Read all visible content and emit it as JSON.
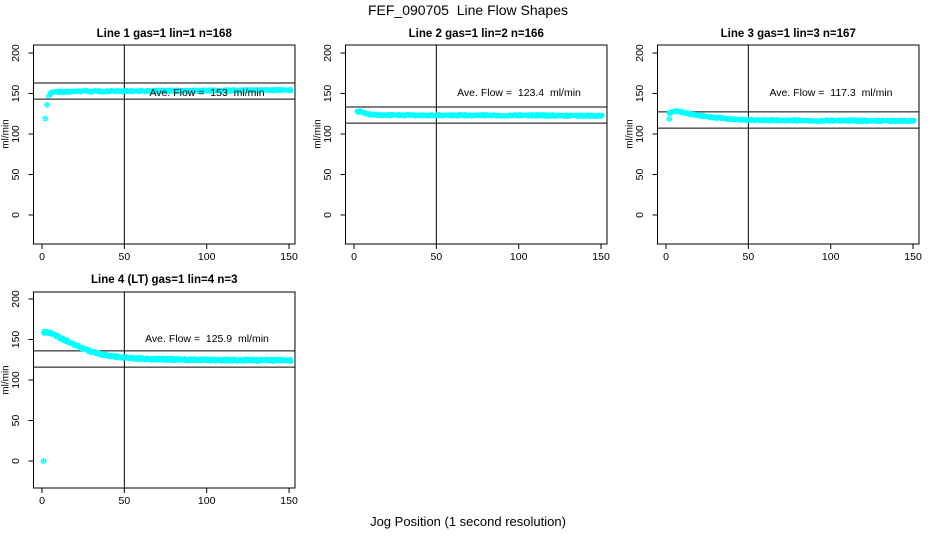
{
  "figure": {
    "main_title": "FEF_090705  Line Flow Shapes",
    "x_axis_label": "Jog Position (1 second resolution)",
    "y_axis_label": "ml/min",
    "point_color": "#00ffff",
    "line_color": "#000000",
    "background_color": "#ffffff"
  },
  "chart_data": [
    {
      "type": "scatter",
      "panel_position": "top-left",
      "title": "Line 1 gas=1 lin=1 n=168",
      "n": 168,
      "ave_flow_ml_min": 153,
      "ave_label": "Ave. Flow =  153  ml/min",
      "xlim": [
        0,
        150
      ],
      "ylim": [
        0,
        200
      ],
      "x_ticks": [
        0,
        50,
        100,
        150
      ],
      "y_ticks": [
        0,
        50,
        100,
        150,
        200
      ],
      "vline_x": 50,
      "hlines": [
        143,
        163
      ],
      "grid": false,
      "legend": false,
      "point_symbol": "open-circle-plus",
      "band_reps": 2,
      "band_jitter": 1.0,
      "isolated_points": [
        [
          2,
          119
        ],
        [
          3,
          136
        ]
      ],
      "curve_points": [
        [
          4,
          146
        ],
        [
          5,
          149.5
        ],
        [
          6,
          151
        ],
        [
          8,
          152
        ],
        [
          12,
          152.3
        ],
        [
          20,
          152.5
        ],
        [
          40,
          152.8
        ],
        [
          60,
          153
        ],
        [
          80,
          153.3
        ],
        [
          100,
          153.6
        ],
        [
          120,
          153.8
        ],
        [
          151,
          154.2
        ]
      ]
    },
    {
      "type": "scatter",
      "panel_position": "top-middle",
      "title": "Line 2 gas=1 lin=2 n=166",
      "n": 166,
      "ave_flow_ml_min": 123.4,
      "ave_label": "Ave. Flow =  123.4  ml/min",
      "xlim": [
        0,
        150
      ],
      "ylim": [
        0,
        200
      ],
      "x_ticks": [
        0,
        50,
        100,
        150
      ],
      "y_ticks": [
        0,
        50,
        100,
        150,
        200
      ],
      "vline_x": 50,
      "hlines": [
        113.4,
        133.4
      ],
      "grid": false,
      "legend": false,
      "point_symbol": "open-circle-plus",
      "band_reps": 2,
      "band_jitter": 1.0,
      "isolated_points": [],
      "curve_points": [
        [
          2,
          127
        ],
        [
          3,
          128
        ],
        [
          4,
          127.8
        ],
        [
          5,
          127
        ],
        [
          6,
          126.2
        ],
        [
          8,
          125
        ],
        [
          10,
          124.2
        ],
        [
          14,
          123.6
        ],
        [
          20,
          123.3
        ],
        [
          40,
          123.2
        ],
        [
          60,
          123.1
        ],
        [
          80,
          123
        ],
        [
          100,
          123
        ],
        [
          120,
          122.8
        ],
        [
          151,
          122.5
        ]
      ]
    },
    {
      "type": "scatter",
      "panel_position": "top-right",
      "title": "Line 3 gas=1 lin=3 n=167",
      "n": 167,
      "ave_flow_ml_min": 117.3,
      "ave_label": "Ave. Flow =  117.3  ml/min",
      "xlim": [
        0,
        150
      ],
      "ylim": [
        0,
        200
      ],
      "x_ticks": [
        0,
        50,
        100,
        150
      ],
      "y_ticks": [
        0,
        50,
        100,
        150,
        200
      ],
      "vline_x": 50,
      "hlines": [
        107.3,
        127.3
      ],
      "grid": false,
      "legend": false,
      "point_symbol": "open-circle-plus",
      "band_reps": 2,
      "band_jitter": 1.0,
      "isolated_points": [
        [
          2,
          118.5
        ]
      ],
      "curve_points": [
        [
          2,
          125.5
        ],
        [
          4,
          127.5
        ],
        [
          6,
          128.3
        ],
        [
          8,
          128
        ],
        [
          10,
          127
        ],
        [
          13,
          125.5
        ],
        [
          16,
          124.2
        ],
        [
          20,
          122.8
        ],
        [
          24,
          121.6
        ],
        [
          28,
          120.6
        ],
        [
          32,
          119.8
        ],
        [
          36,
          119.1
        ],
        [
          40,
          118.5
        ],
        [
          45,
          117.9
        ],
        [
          50,
          117.5
        ],
        [
          60,
          117
        ],
        [
          70,
          116.8
        ],
        [
          85,
          116.6
        ],
        [
          100,
          116.5
        ],
        [
          120,
          116.4
        ],
        [
          151,
          116.2
        ]
      ]
    },
    {
      "type": "scatter",
      "panel_position": "bottom-left",
      "title": "Line 4 (LT) gas=1 lin=4 n=3",
      "n": 3,
      "ave_flow_ml_min": 125.9,
      "ave_label": "Ave. Flow =  125.9  ml/min",
      "xlim": [
        0,
        150
      ],
      "ylim": [
        0,
        200
      ],
      "x_ticks": [
        0,
        50,
        100,
        150
      ],
      "y_ticks": [
        0,
        50,
        100,
        150,
        200
      ],
      "vline_x": 50,
      "hlines": [
        115.9,
        135.9
      ],
      "grid": false,
      "legend": false,
      "point_symbol": "open-circle-plus",
      "band_reps": 3,
      "band_jitter": 1.3,
      "isolated_points": [
        [
          1,
          0
        ]
      ],
      "curve_points": [
        [
          1,
          159
        ],
        [
          3,
          159.2
        ],
        [
          5,
          158
        ],
        [
          7,
          156.3
        ],
        [
          9,
          154.3
        ],
        [
          12,
          151.3
        ],
        [
          15,
          148.3
        ],
        [
          18,
          145.3
        ],
        [
          21,
          142.4
        ],
        [
          24,
          139.6
        ],
        [
          27,
          137.2
        ],
        [
          30,
          135
        ],
        [
          33,
          133.2
        ],
        [
          36,
          131.7
        ],
        [
          40,
          130.2
        ],
        [
          44,
          129
        ],
        [
          48,
          128.2
        ],
        [
          52,
          127.5
        ],
        [
          58,
          126.6
        ],
        [
          65,
          126
        ],
        [
          72,
          125.6
        ],
        [
          80,
          125.3
        ],
        [
          90,
          125
        ],
        [
          100,
          124.8
        ],
        [
          115,
          124.6
        ],
        [
          130,
          124.4
        ],
        [
          151,
          124.2
        ]
      ]
    }
  ]
}
